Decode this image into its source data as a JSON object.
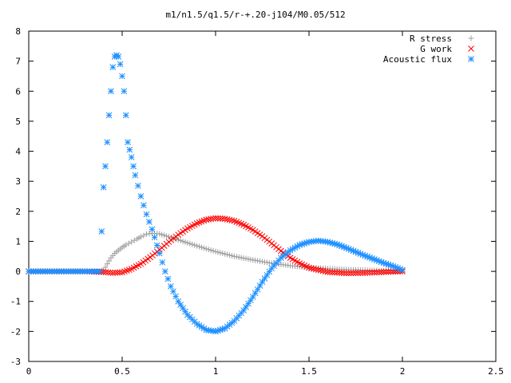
{
  "chart_data": {
    "type": "scatter",
    "title": "m1/n1.5/q1.5/r-+.20-j104/M0.05/512",
    "xlabel": "",
    "ylabel": "",
    "xlim": [
      0,
      2.5
    ],
    "ylim": [
      -3,
      8
    ],
    "x_ticks": [
      "0",
      "0.5",
      "1",
      "1.5",
      "2",
      "2.5"
    ],
    "y_ticks": [
      "-3",
      "-2",
      "-1",
      "0",
      "1",
      "2",
      "3",
      "4",
      "5",
      "6",
      "7",
      "8"
    ],
    "grid": false,
    "legend_position": "top-right",
    "series": [
      {
        "name": "R stress",
        "marker": "plus",
        "color": "#a0a0a0",
        "x": [
          0.0,
          0.1,
          0.2,
          0.3,
          0.38,
          0.4,
          0.42,
          0.44,
          0.46,
          0.48,
          0.5,
          0.52,
          0.55,
          0.58,
          0.6,
          0.63,
          0.66,
          0.7,
          0.75,
          0.8,
          0.85,
          0.9,
          0.95,
          1.0,
          1.05,
          1.1,
          1.2,
          1.3,
          1.4,
          1.5,
          1.6,
          1.7,
          1.8,
          1.9,
          2.0
        ],
        "y": [
          0.0,
          0.0,
          0.0,
          0.0,
          0.0,
          0.02,
          0.25,
          0.45,
          0.6,
          0.7,
          0.8,
          0.88,
          0.98,
          1.08,
          1.15,
          1.24,
          1.27,
          1.25,
          1.15,
          1.05,
          0.95,
          0.85,
          0.75,
          0.66,
          0.58,
          0.5,
          0.38,
          0.27,
          0.19,
          0.13,
          0.09,
          0.06,
          0.04,
          0.02,
          0.0
        ]
      },
      {
        "name": "G work",
        "marker": "cross",
        "color": "#ff0000",
        "x": [
          0.0,
          0.1,
          0.2,
          0.3,
          0.4,
          0.45,
          0.5,
          0.55,
          0.6,
          0.65,
          0.7,
          0.75,
          0.8,
          0.85,
          0.9,
          0.95,
          1.0,
          1.05,
          1.1,
          1.15,
          1.2,
          1.25,
          1.3,
          1.35,
          1.4,
          1.45,
          1.5,
          1.6,
          1.7,
          1.8,
          1.9,
          2.0
        ],
        "y": [
          0.0,
          0.0,
          0.0,
          0.0,
          -0.02,
          -0.05,
          -0.03,
          0.08,
          0.25,
          0.47,
          0.72,
          0.98,
          1.22,
          1.43,
          1.6,
          1.72,
          1.77,
          1.75,
          1.68,
          1.55,
          1.38,
          1.17,
          0.93,
          0.68,
          0.45,
          0.27,
          0.12,
          -0.02,
          -0.06,
          -0.05,
          -0.02,
          0.0
        ]
      },
      {
        "name": "Acoustic flux",
        "marker": "star",
        "color": "#1e90ff",
        "x": [
          0.0,
          0.1,
          0.2,
          0.3,
          0.38,
          0.39,
          0.4,
          0.41,
          0.42,
          0.43,
          0.44,
          0.45,
          0.46,
          0.47,
          0.48,
          0.49,
          0.5,
          0.51,
          0.52,
          0.53,
          0.55,
          0.57,
          0.6,
          0.63,
          0.66,
          0.7,
          0.73,
          0.76,
          0.8,
          0.85,
          0.9,
          0.95,
          1.0,
          1.05,
          1.1,
          1.15,
          1.2,
          1.25,
          1.3,
          1.35,
          1.4,
          1.45,
          1.5,
          1.55,
          1.6,
          1.65,
          1.7,
          1.75,
          1.8,
          1.85,
          1.9,
          1.95,
          2.0
        ],
        "y": [
          0.0,
          0.0,
          0.0,
          0.0,
          0.0,
          1.33,
          2.8,
          3.5,
          4.3,
          5.2,
          6.0,
          6.8,
          7.15,
          7.2,
          7.15,
          6.9,
          6.5,
          6.0,
          5.2,
          4.3,
          3.8,
          3.2,
          2.5,
          1.9,
          1.4,
          0.6,
          0.0,
          -0.5,
          -1.0,
          -1.45,
          -1.75,
          -1.95,
          -2.0,
          -1.9,
          -1.65,
          -1.3,
          -0.85,
          -0.35,
          0.1,
          0.45,
          0.7,
          0.88,
          0.98,
          1.02,
          0.98,
          0.9,
          0.78,
          0.65,
          0.52,
          0.4,
          0.28,
          0.17,
          0.05
        ]
      }
    ]
  }
}
